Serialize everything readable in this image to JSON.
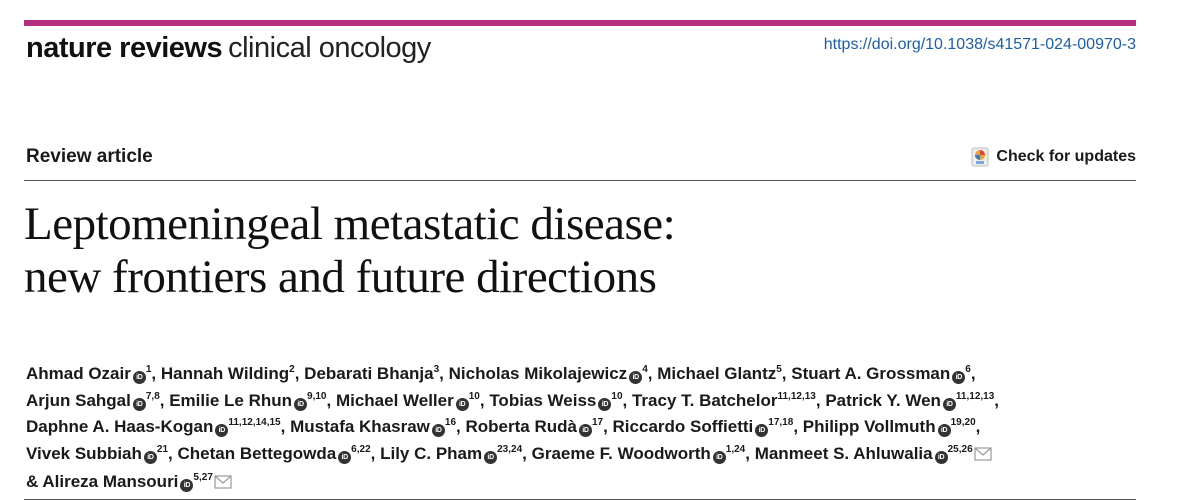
{
  "header": {
    "journal_bold": "nature reviews",
    "journal_light": "clinical oncology",
    "doi": "https://doi.org/10.1038/s41571-024-00970-3",
    "accent_color": "#b52f7f"
  },
  "article": {
    "type": "Review article",
    "check_updates": "Check for updates",
    "title_line1": "Leptomeningeal metastatic disease:",
    "title_line2": "new frontiers and future directions"
  },
  "authors": [
    [
      {
        "name": "Ahmad Ozair",
        "orcid": true,
        "aff": "1"
      },
      {
        "name": "Hannah Wilding",
        "orcid": false,
        "aff": "2"
      },
      {
        "name": "Debarati Bhanja",
        "orcid": false,
        "aff": "3"
      },
      {
        "name": "Nicholas Mikolajewicz",
        "orcid": true,
        "aff": "4"
      },
      {
        "name": "Michael Glantz",
        "orcid": false,
        "aff": "5"
      },
      {
        "name": "Stuart A. Grossman",
        "orcid": true,
        "aff": "6"
      }
    ],
    [
      {
        "name": "Arjun Sahgal",
        "orcid": true,
        "aff": "7,8"
      },
      {
        "name": "Emilie Le Rhun",
        "orcid": true,
        "aff": "9,10"
      },
      {
        "name": "Michael Weller",
        "orcid": true,
        "aff": "10"
      },
      {
        "name": "Tobias Weiss",
        "orcid": true,
        "aff": "10"
      },
      {
        "name": "Tracy T. Batchelor",
        "orcid": false,
        "aff": "11,12,13"
      },
      {
        "name": "Patrick Y. Wen",
        "orcid": true,
        "aff": "11,12,13"
      }
    ],
    [
      {
        "name": "Daphne A. Haas-Kogan",
        "orcid": true,
        "aff": "11,12,14,15"
      },
      {
        "name": "Mustafa Khasraw",
        "orcid": true,
        "aff": "16"
      },
      {
        "name": "Roberta Rudà",
        "orcid": true,
        "aff": "17"
      },
      {
        "name": "Riccardo Soffietti",
        "orcid": true,
        "aff": "17,18"
      },
      {
        "name": "Philipp Vollmuth",
        "orcid": true,
        "aff": "19,20"
      }
    ],
    [
      {
        "name": "Vivek Subbiah",
        "orcid": true,
        "aff": "21"
      },
      {
        "name": "Chetan Bettegowda",
        "orcid": true,
        "aff": "6,22"
      },
      {
        "name": "Lily C. Pham",
        "orcid": true,
        "aff": "23,24"
      },
      {
        "name": "Graeme F. Woodworth",
        "orcid": true,
        "aff": "1,24"
      },
      {
        "name": "Manmeet S. Ahluwalia",
        "orcid": true,
        "aff": "25,26",
        "mail": true
      }
    ],
    [
      {
        "name": "Alireza Mansouri",
        "orcid": true,
        "aff": "5,27",
        "mail": true,
        "prefix": "& "
      }
    ]
  ]
}
